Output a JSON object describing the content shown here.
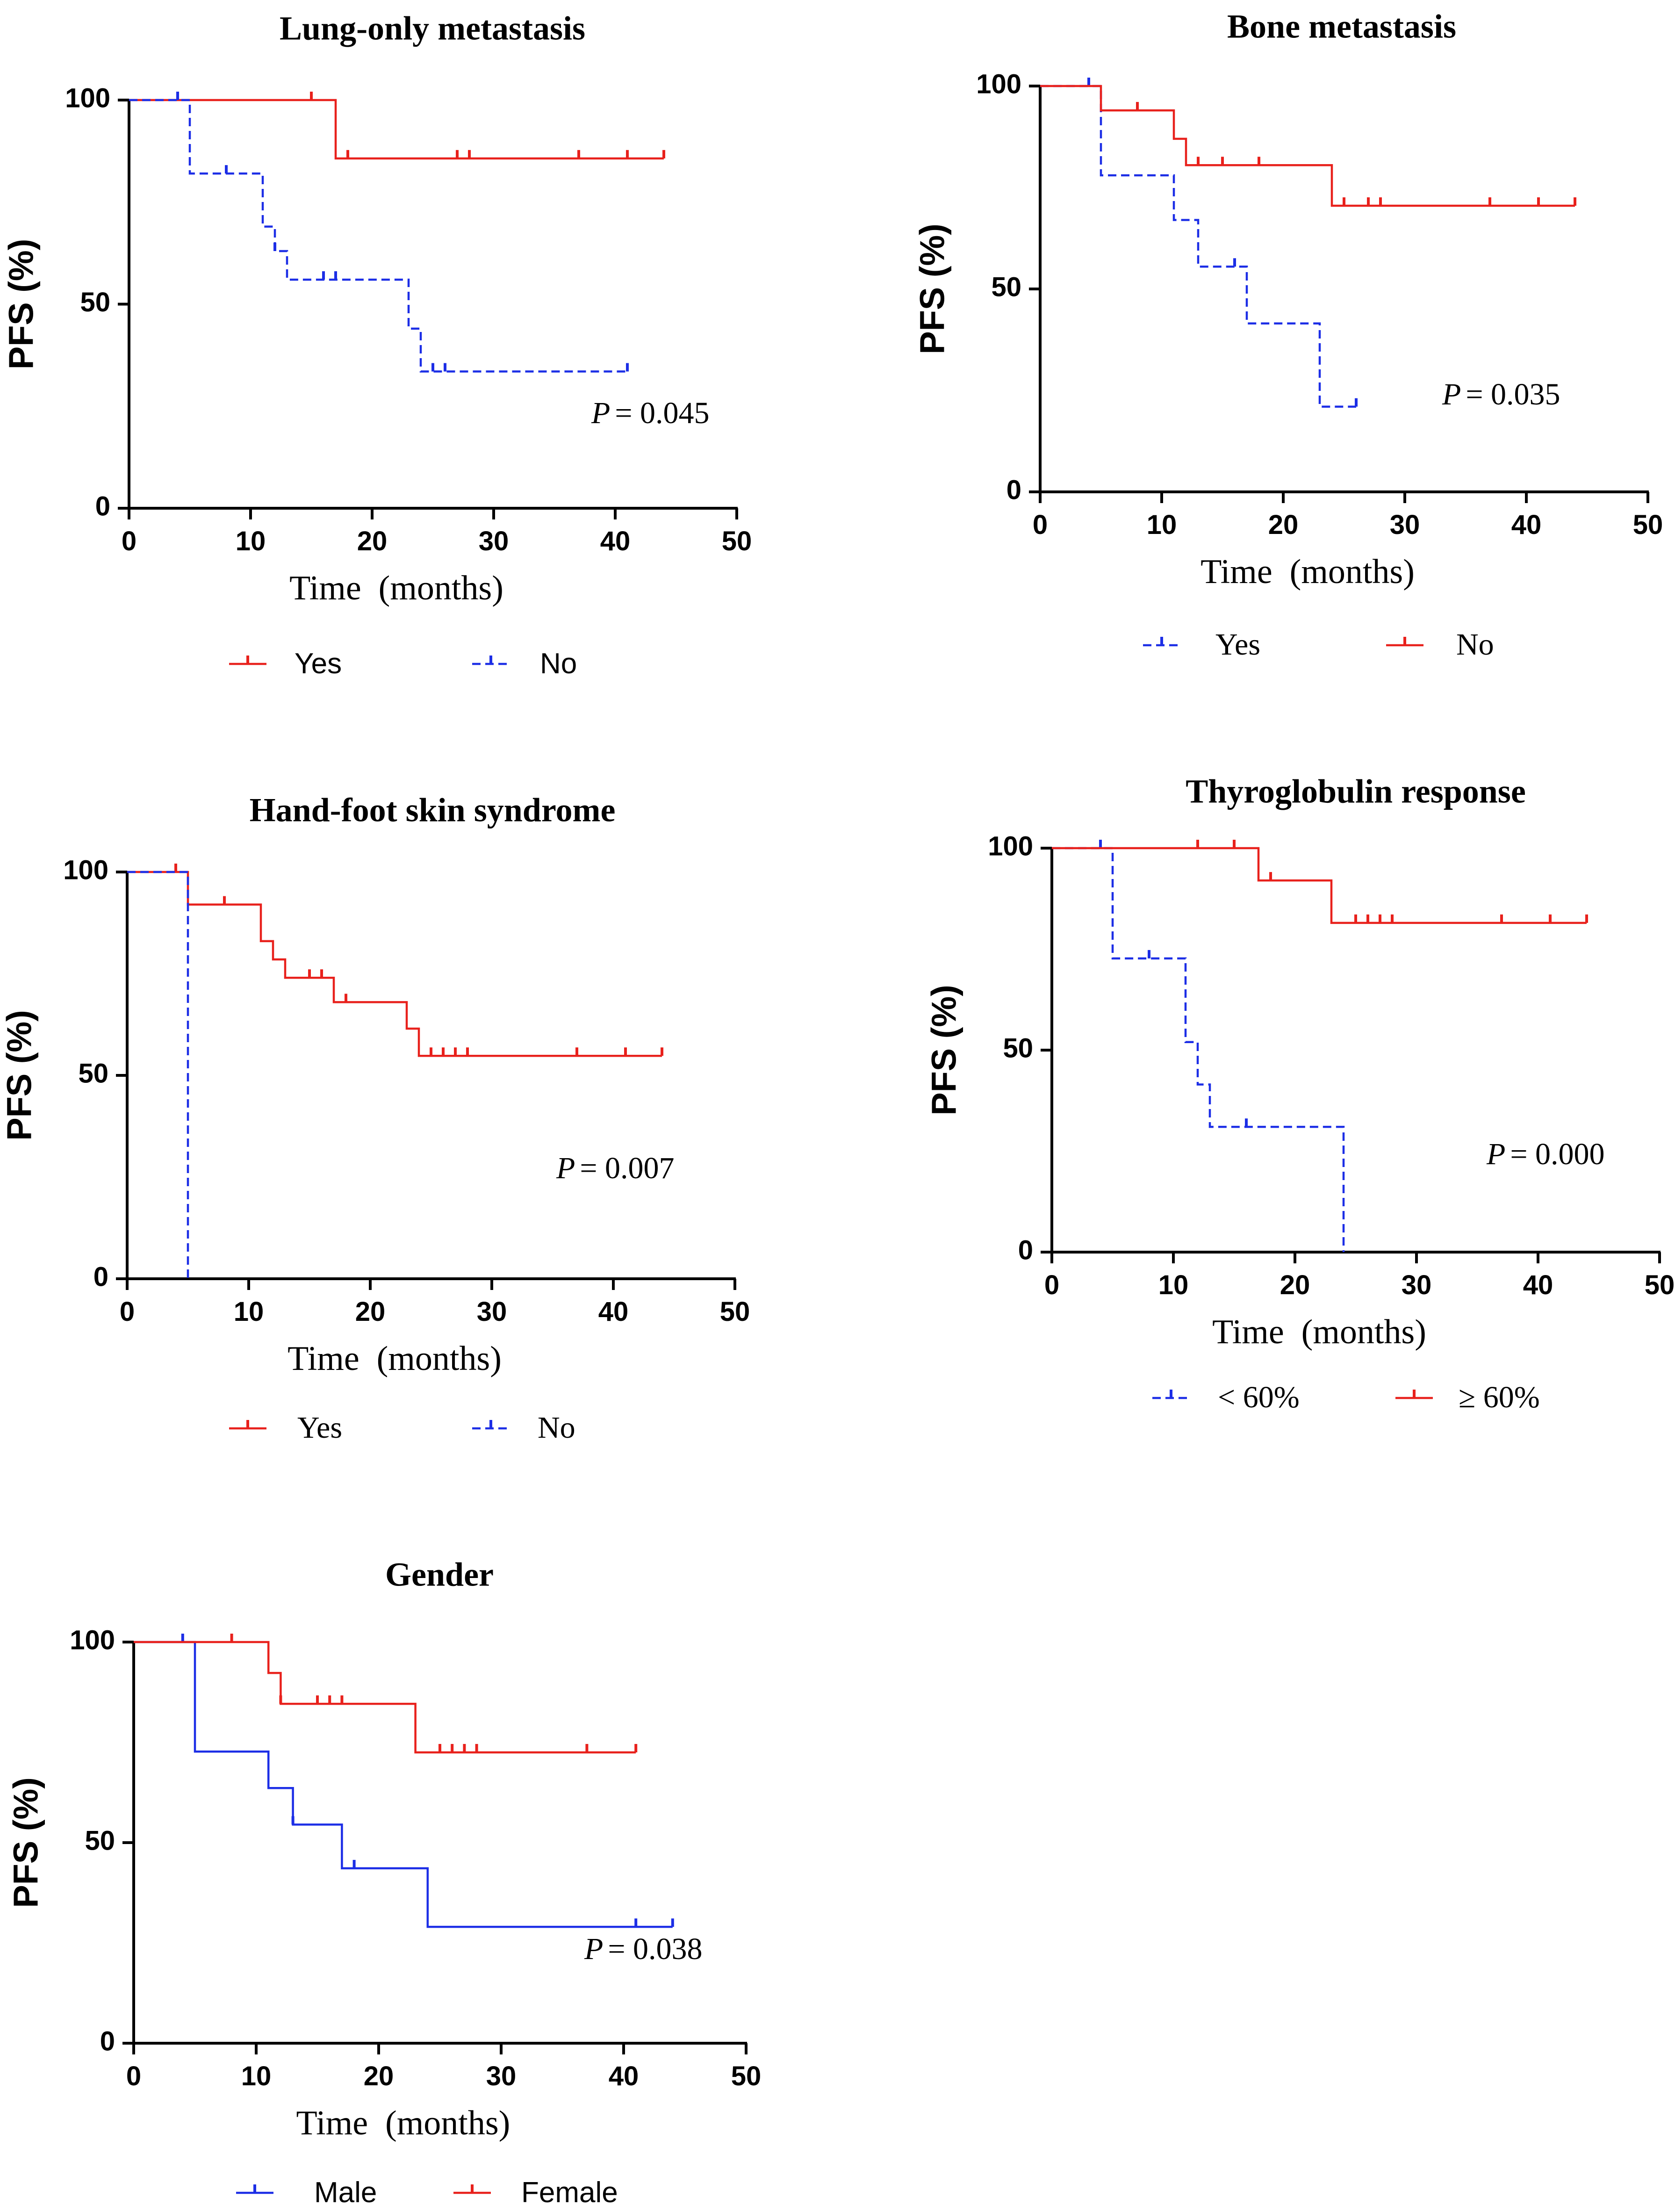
{
  "figure": "Kaplan-Meier PFS curves",
  "colors": {
    "red": "#e8211c",
    "blue": "#1c2ee6",
    "axis": "#000000"
  },
  "chart_data": [
    {
      "type": "line",
      "title": "Lung-only metastasis",
      "xlabel": "Time  (months)",
      "ylabel": "PFS (%)",
      "xlim": [
        0,
        50
      ],
      "ylim": [
        0,
        100
      ],
      "xticks": [
        "0",
        "10",
        "20",
        "30",
        "40",
        "50"
      ],
      "yticks": [
        "0",
        "50",
        "100"
      ],
      "pvalue": "= 0.045",
      "series": [
        {
          "name": "Yes",
          "color": "#e8211c",
          "dash": false,
          "steps": [
            [
              0,
              100
            ],
            [
              17,
              85.7
            ],
            [
              44,
              85.7
            ]
          ],
          "censors": [
            [
              4,
              100
            ],
            [
              15,
              100
            ],
            [
              18,
              85.7
            ],
            [
              27,
              85.7
            ],
            [
              28,
              85.7
            ],
            [
              37,
              85.7
            ],
            [
              41,
              85.7
            ],
            [
              44,
              85.7
            ]
          ]
        },
        {
          "name": "No",
          "color": "#1c2ee6",
          "dash": true,
          "steps": [
            [
              0,
              100
            ],
            [
              5,
              82
            ],
            [
              11,
              69
            ],
            [
              12,
              63
            ],
            [
              13,
              56
            ],
            [
              23,
              44
            ],
            [
              24,
              33.5
            ],
            [
              41,
              33.5
            ]
          ],
          "censors": [
            [
              4,
              100
            ],
            [
              8,
              82
            ],
            [
              12,
              63
            ],
            [
              16,
              56
            ],
            [
              17,
              56
            ],
            [
              25,
              33.5
            ],
            [
              26,
              33.5
            ],
            [
              41,
              33.5
            ]
          ]
        }
      ]
    },
    {
      "type": "line",
      "title": "Bone metastasis",
      "xlabel": "Time  (months)",
      "ylabel": "PFS (%)",
      "xlim": [
        0,
        50
      ],
      "ylim": [
        0,
        100
      ],
      "xticks": [
        "0",
        "10",
        "20",
        "30",
        "40",
        "50"
      ],
      "yticks": [
        "0",
        "50",
        "100"
      ],
      "pvalue": "= 0.035",
      "series": [
        {
          "name": "Yes",
          "color": "#1c2ee6",
          "dash": true,
          "steps": [
            [
              0,
              100
            ],
            [
              5,
              78
            ],
            [
              11,
              67
            ],
            [
              13,
              55.5
            ],
            [
              17,
              41.5
            ],
            [
              23,
              21
            ],
            [
              26,
              21
            ]
          ],
          "censors": [
            [
              4,
              100
            ],
            [
              16,
              55.5
            ],
            [
              26,
              21
            ]
          ]
        },
        {
          "name": "No",
          "color": "#e8211c",
          "dash": false,
          "steps": [
            [
              0,
              100
            ],
            [
              5,
              94
            ],
            [
              11,
              87
            ],
            [
              12,
              80.5
            ],
            [
              24,
              70.5
            ],
            [
              44,
              70.5
            ]
          ],
          "censors": [
            [
              8,
              94
            ],
            [
              13,
              80.5
            ],
            [
              15,
              80.5
            ],
            [
              18,
              80.5
            ],
            [
              25,
              70.5
            ],
            [
              27,
              70.5
            ],
            [
              28,
              70.5
            ],
            [
              37,
              70.5
            ],
            [
              41,
              70.5
            ],
            [
              44,
              70.5
            ]
          ]
        }
      ]
    },
    {
      "type": "line",
      "title": "Hand-foot skin syndrome",
      "xlabel": "Time  (months)",
      "ylabel": "PFS (%)",
      "xlim": [
        0,
        50
      ],
      "ylim": [
        0,
        100
      ],
      "xticks": [
        "0",
        "10",
        "20",
        "30",
        "40",
        "50"
      ],
      "yticks": [
        "0",
        "50",
        "100"
      ],
      "pvalue": "= 0.007",
      "series": [
        {
          "name": "Yes",
          "color": "#e8211c",
          "dash": false,
          "steps": [
            [
              0,
              100
            ],
            [
              5,
              92
            ],
            [
              11,
              83
            ],
            [
              12,
              78.5
            ],
            [
              13,
              74
            ],
            [
              17,
              68
            ],
            [
              23,
              61.5
            ],
            [
              24,
              54.8
            ],
            [
              44,
              54.8
            ]
          ],
          "censors": [
            [
              4,
              100
            ],
            [
              8,
              92
            ],
            [
              15,
              74
            ],
            [
              16,
              74
            ],
            [
              18,
              68
            ],
            [
              25,
              54.8
            ],
            [
              26,
              54.8
            ],
            [
              27,
              54.8
            ],
            [
              28,
              54.8
            ],
            [
              37,
              54.8
            ],
            [
              41,
              54.8
            ],
            [
              44,
              54.8
            ]
          ]
        },
        {
          "name": "No",
          "color": "#1c2ee6",
          "dash": true,
          "steps": [
            [
              0,
              100
            ],
            [
              5,
              0
            ],
            [
              5,
              0
            ]
          ],
          "censors": []
        }
      ]
    },
    {
      "type": "line",
      "title": "Thyroglobulin response",
      "xlabel": "Time  (months)",
      "ylabel": "PFS (%)",
      "xlim": [
        0,
        50
      ],
      "ylim": [
        0,
        100
      ],
      "xticks": [
        "0",
        "10",
        "20",
        "30",
        "40",
        "50"
      ],
      "yticks": [
        "0",
        "50",
        "100"
      ],
      "pvalue": "= 0.000",
      "series": [
        {
          "name": "< 60%",
          "color": "#1c2ee6",
          "dash": true,
          "steps": [
            [
              0,
              100
            ],
            [
              5,
              72.7
            ],
            [
              11,
              52
            ],
            [
              12,
              41.5
            ],
            [
              13,
              31
            ],
            [
              24,
              0
            ],
            [
              24,
              0
            ]
          ],
          "censors": [
            [
              4,
              100
            ],
            [
              8,
              72.7
            ],
            [
              16,
              31
            ]
          ]
        },
        {
          "name": "≥ 60%",
          "color": "#e8211c",
          "dash": false,
          "steps": [
            [
              0,
              100
            ],
            [
              17,
              92
            ],
            [
              23,
              81.5
            ],
            [
              44,
              81.5
            ]
          ],
          "censors": [
            [
              12,
              100
            ],
            [
              15,
              100
            ],
            [
              18,
              92
            ],
            [
              25,
              81.5
            ],
            [
              26,
              81.5
            ],
            [
              27,
              81.5
            ],
            [
              28,
              81.5
            ],
            [
              37,
              81.5
            ],
            [
              41,
              81.5
            ],
            [
              44,
              81.5
            ]
          ]
        }
      ]
    },
    {
      "type": "line",
      "title": "Gender",
      "xlabel": "Time  (months)",
      "ylabel": "PFS (%)",
      "xlim": [
        0,
        50
      ],
      "ylim": [
        0,
        100
      ],
      "xticks": [
        "0",
        "10",
        "20",
        "30",
        "40",
        "50"
      ],
      "yticks": [
        "0",
        "50",
        "100"
      ],
      "pvalue": "= 0.038",
      "series": [
        {
          "name": "Male",
          "color": "#1c2ee6",
          "dash": false,
          "steps": [
            [
              0,
              100
            ],
            [
              5,
              72.7
            ],
            [
              11,
              63.6
            ],
            [
              13,
              54.5
            ],
            [
              17,
              43.6
            ],
            [
              24,
              29
            ],
            [
              44,
              29
            ]
          ],
          "censors": [
            [
              4,
              100
            ],
            [
              13,
              54.5
            ],
            [
              18,
              43.6
            ],
            [
              41,
              29
            ],
            [
              44,
              29
            ]
          ]
        },
        {
          "name": "Female",
          "color": "#e8211c",
          "dash": false,
          "steps": [
            [
              0,
              100
            ],
            [
              11,
              92.3
            ],
            [
              12,
              84.6
            ],
            [
              23,
              72.5
            ],
            [
              41,
              72.5
            ]
          ],
          "censors": [
            [
              8,
              100
            ],
            [
              12,
              84.6
            ],
            [
              15,
              84.6
            ],
            [
              16,
              84.6
            ],
            [
              17,
              84.6
            ],
            [
              25,
              72.5
            ],
            [
              26,
              72.5
            ],
            [
              27,
              72.5
            ],
            [
              28,
              72.5
            ],
            [
              37,
              72.5
            ],
            [
              41,
              72.5
            ]
          ]
        }
      ]
    }
  ]
}
